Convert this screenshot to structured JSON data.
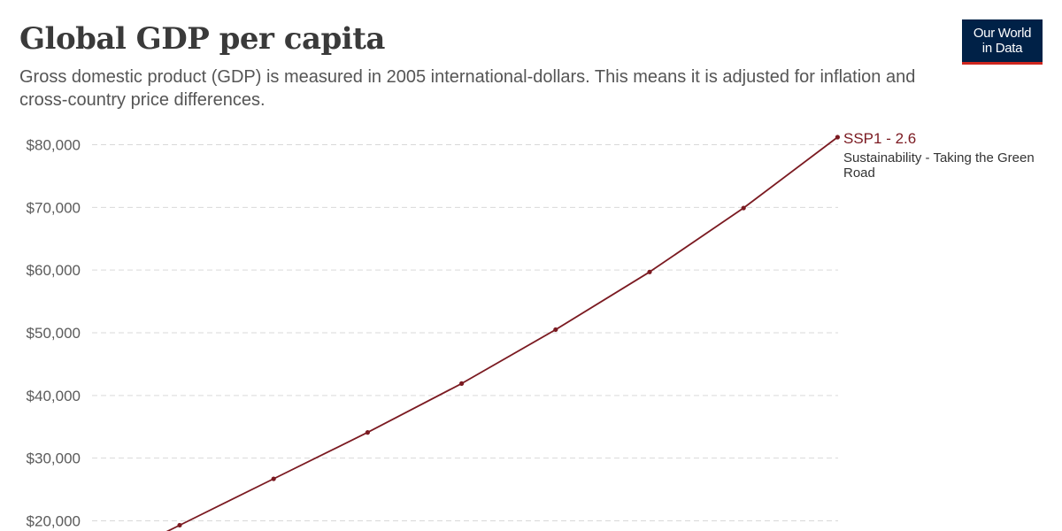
{
  "header": {
    "title": "Global GDP per capita",
    "subtitle": "Gross domestic product (GDP) is measured in 2005 international-dollars. This means it is adjusted for inflation and cross-country price differences."
  },
  "logo": {
    "line1": "Our World",
    "line2": "in Data",
    "background": "#002147",
    "accent": "#ce261e"
  },
  "chart_data": {
    "type": "line",
    "title": "Global GDP per capita",
    "subtitle": "Gross domestic product (GDP) is measured in 2005 international-dollars. This means it is adjusted for inflation and cross-country price differences.",
    "xlabel": "",
    "ylabel": "",
    "ylim": [
      20000,
      80000
    ],
    "y_ticks": [
      20000,
      30000,
      40000,
      50000,
      60000,
      70000,
      80000
    ],
    "y_tick_labels": [
      "$20,000",
      "$30,000",
      "$40,000",
      "$50,000",
      "$60,000",
      "$70,000",
      "$80,000"
    ],
    "grid": "horizontal dashed",
    "legend": "inline label at line end (right)",
    "series": [
      {
        "name": "SSP1 - 2.6",
        "description": "Sustainability - Taking the Green Road",
        "color": "#7b1a21",
        "values": [
          19300,
          26700,
          34100,
          41900,
          50500,
          59700,
          69900,
          81200
        ]
      }
    ]
  }
}
